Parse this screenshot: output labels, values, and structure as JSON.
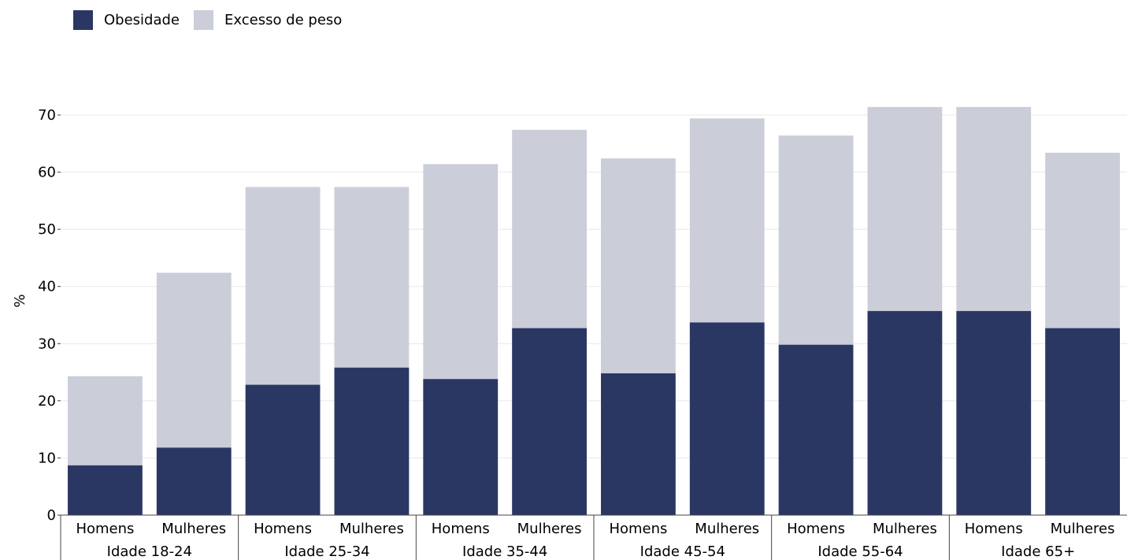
{
  "chart_data": {
    "type": "bar",
    "stacked": false,
    "overlap": true,
    "ylabel": "%",
    "ylim": [
      0,
      71
    ],
    "yticks": [
      0,
      10,
      20,
      30,
      40,
      50,
      60,
      70
    ],
    "grid": true,
    "legend_position": "top-left",
    "groups": [
      "Idade 18-24",
      "Idade 25-34",
      "Idade 35-44",
      "Idade 45-54",
      "Idade 55-64",
      "Idade 65+"
    ],
    "sub_categories": [
      "Homens",
      "Mulheres"
    ],
    "categories": [
      "Homens",
      "Mulheres",
      "Homens",
      "Mulheres",
      "Homens",
      "Mulheres",
      "Homens",
      "Mulheres",
      "Homens",
      "Mulheres",
      "Homens",
      "Mulheres"
    ],
    "series": [
      {
        "name": "Obesidade",
        "color": "#2b3763",
        "values": [
          8.7,
          11.8,
          22.8,
          25.8,
          23.8,
          32.7,
          24.8,
          33.7,
          29.8,
          35.7,
          35.7,
          32.7
        ]
      },
      {
        "name": "Excesso de peso",
        "color": "#cbcdd9",
        "values": [
          24.3,
          42.4,
          57.4,
          57.4,
          61.4,
          67.4,
          62.4,
          69.4,
          66.4,
          71.4,
          71.4,
          63.4
        ]
      }
    ]
  }
}
